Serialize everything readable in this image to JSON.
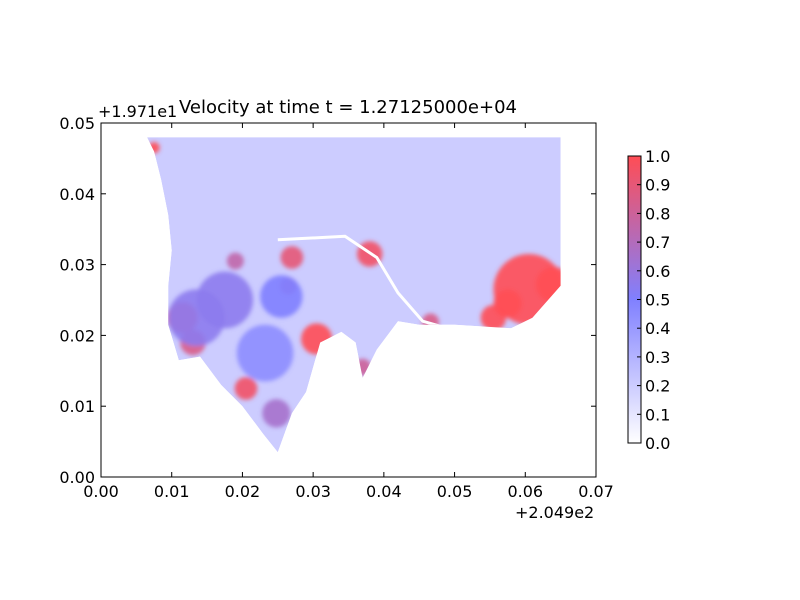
{
  "figure": {
    "title": "Velocity at time t = 1.27125000e+04",
    "x_offset_label": "+2.049e2",
    "y_offset_label": "+1.971e1"
  },
  "chart_data": {
    "type": "heatmap",
    "title": "Velocity at time t = 1.27125000e+04",
    "xlabel": "",
    "ylabel": "",
    "xlim": [
      0.0,
      0.07
    ],
    "ylim": [
      0.0,
      0.05
    ],
    "x_offset": 204.9,
    "y_offset": 19.71,
    "xticks": [
      "0.00",
      "0.01",
      "0.02",
      "0.03",
      "0.04",
      "0.05",
      "0.06",
      "0.07"
    ],
    "yticks": [
      "0.00",
      "0.01",
      "0.02",
      "0.03",
      "0.04",
      "0.05"
    ],
    "colorbar": {
      "range": [
        0.0,
        1.0
      ],
      "ticks": [
        "0.0",
        "0.1",
        "0.2",
        "0.3",
        "0.4",
        "0.5",
        "0.6",
        "0.7",
        "0.8",
        "0.9",
        "1.0"
      ],
      "colors": {
        "low": "#ffffff",
        "mid": "#8080ff",
        "high": "#ff4d55"
      }
    },
    "grid": false,
    "domain_outline": [
      [
        0.0065,
        0.048
      ],
      [
        0.065,
        0.048
      ],
      [
        0.065,
        0.027
      ],
      [
        0.061,
        0.0225
      ],
      [
        0.058,
        0.021
      ],
      [
        0.05,
        0.0215
      ],
      [
        0.045,
        0.0215
      ],
      [
        0.042,
        0.022
      ],
      [
        0.039,
        0.018
      ],
      [
        0.037,
        0.014
      ],
      [
        0.036,
        0.019
      ],
      [
        0.034,
        0.0205
      ],
      [
        0.031,
        0.019
      ],
      [
        0.029,
        0.012
      ],
      [
        0.027,
        0.009
      ],
      [
        0.025,
        0.0035
      ],
      [
        0.023,
        0.006
      ],
      [
        0.02,
        0.01
      ],
      [
        0.017,
        0.013
      ],
      [
        0.014,
        0.017
      ],
      [
        0.011,
        0.0165
      ],
      [
        0.0095,
        0.0215
      ],
      [
        0.0095,
        0.027
      ],
      [
        0.01,
        0.032
      ],
      [
        0.0095,
        0.037
      ],
      [
        0.0085,
        0.042
      ],
      [
        0.0075,
        0.046
      ]
    ],
    "field_base": 0.2,
    "hotspots": [
      {
        "x": 0.0605,
        "y": 0.0265,
        "r": 0.005,
        "v": 1.0
      },
      {
        "x": 0.064,
        "y": 0.0272,
        "r": 0.0025,
        "v": 1.0
      },
      {
        "x": 0.0575,
        "y": 0.0245,
        "r": 0.002,
        "v": 1.0
      },
      {
        "x": 0.0555,
        "y": 0.0225,
        "r": 0.0018,
        "v": 1.0
      },
      {
        "x": 0.038,
        "y": 0.0315,
        "r": 0.0018,
        "v": 0.95
      },
      {
        "x": 0.0305,
        "y": 0.0195,
        "r": 0.0022,
        "v": 1.0
      },
      {
        "x": 0.027,
        "y": 0.031,
        "r": 0.0016,
        "v": 0.9
      },
      {
        "x": 0.0205,
        "y": 0.0125,
        "r": 0.0016,
        "v": 0.95
      },
      {
        "x": 0.0115,
        "y": 0.0225,
        "r": 0.0022,
        "v": 0.9
      },
      {
        "x": 0.013,
        "y": 0.019,
        "r": 0.0018,
        "v": 0.85
      },
      {
        "x": 0.019,
        "y": 0.0305,
        "r": 0.0012,
        "v": 0.75
      },
      {
        "x": 0.0265,
        "y": 0.027,
        "r": 0.0012,
        "v": 0.7
      },
      {
        "x": 0.0175,
        "y": 0.025,
        "r": 0.004,
        "v": 0.55
      },
      {
        "x": 0.0135,
        "y": 0.0225,
        "r": 0.004,
        "v": 0.55
      },
      {
        "x": 0.0255,
        "y": 0.0255,
        "r": 0.003,
        "v": 0.5
      },
      {
        "x": 0.0232,
        "y": 0.0175,
        "r": 0.004,
        "v": 0.45
      },
      {
        "x": 0.0248,
        "y": 0.009,
        "r": 0.002,
        "v": 0.65
      },
      {
        "x": 0.037,
        "y": 0.0155,
        "r": 0.0012,
        "v": 0.8
      },
      {
        "x": 0.0466,
        "y": 0.0219,
        "r": 0.0012,
        "v": 0.85
      },
      {
        "x": 0.0075,
        "y": 0.0465,
        "r": 0.0008,
        "v": 1.0
      }
    ],
    "road_line": [
      [
        0.025,
        0.0335
      ],
      [
        0.0345,
        0.034
      ],
      [
        0.039,
        0.031
      ],
      [
        0.042,
        0.026
      ],
      [
        0.0455,
        0.022
      ],
      [
        0.049,
        0.021
      ]
    ]
  }
}
